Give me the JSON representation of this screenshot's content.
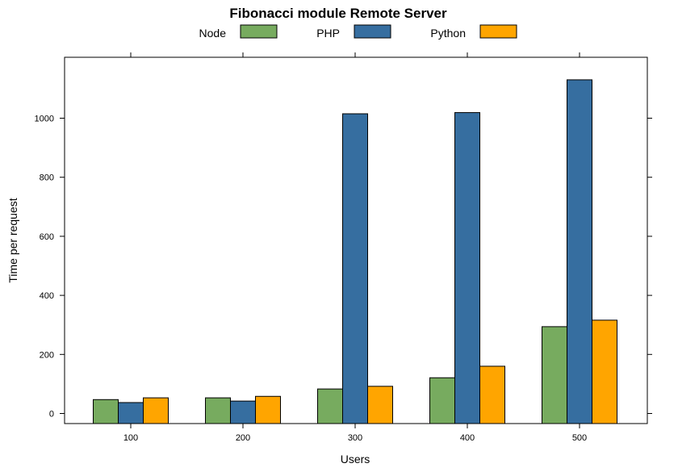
{
  "chart_data": {
    "type": "bar",
    "title": "Fibonacci module Remote Server",
    "xlabel": "Users",
    "ylabel": "Time per request",
    "categories": [
      "100",
      "200",
      "300",
      "400",
      "500"
    ],
    "yticks": [
      0,
      200,
      400,
      600,
      800,
      1000
    ],
    "ylim": [
      -35,
      1205
    ],
    "legend_position": "top",
    "series": [
      {
        "name": "Node",
        "color": "#77ab5f",
        "values": [
          47,
          53,
          83,
          121,
          294
        ]
      },
      {
        "name": "PHP",
        "color": "#366ea0",
        "values": [
          37,
          42,
          1015,
          1019,
          1130
        ]
      },
      {
        "name": "Python",
        "color": "#ffa500",
        "values": [
          53,
          58,
          92,
          160,
          316
        ]
      }
    ]
  }
}
